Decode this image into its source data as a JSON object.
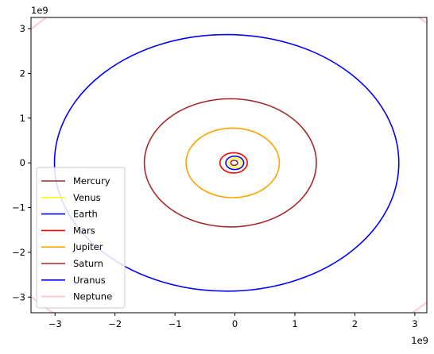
{
  "chart_data": {
    "type": "line",
    "title": "",
    "xlabel": "",
    "ylabel": "",
    "x_offset_label": "1e9",
    "y_offset_label": "1e9",
    "xlim": [
      -3400000000.0,
      3200000000.0
    ],
    "ylim": [
      -3350000000.0,
      3250000000.0
    ],
    "xticks": [
      {
        "value": -3000000000.0,
        "label": "−3"
      },
      {
        "value": -2000000000.0,
        "label": "−2"
      },
      {
        "value": -1000000000.0,
        "label": "−1"
      },
      {
        "value": 0,
        "label": "0"
      },
      {
        "value": 1000000000.0,
        "label": "1"
      },
      {
        "value": 2000000000.0,
        "label": "2"
      },
      {
        "value": 3000000000.0,
        "label": "3"
      }
    ],
    "yticks": [
      {
        "value": -3000000000.0,
        "label": "−3"
      },
      {
        "value": -2000000000.0,
        "label": "−2"
      },
      {
        "value": -1000000000.0,
        "label": "−1"
      },
      {
        "value": 0,
        "label": "0"
      },
      {
        "value": 1000000000.0,
        "label": "1"
      },
      {
        "value": 2000000000.0,
        "label": "2"
      },
      {
        "value": 3000000000.0,
        "label": "3"
      }
    ],
    "grid": false,
    "legend_position": "lower-left",
    "series": [
      {
        "name": "Mercury",
        "color": "#a52a2a",
        "center": [
          -11800000.0,
          0
        ],
        "radii": [
          57900000.0,
          56600000.0
        ]
      },
      {
        "name": "Venus",
        "color": "#ffff00",
        "center": [
          -700000.0,
          0
        ],
        "radii": [
          108200000.0,
          108200000.0
        ]
      },
      {
        "name": "Earth",
        "color": "#0000ff",
        "center": [
          -2500000.0,
          0
        ],
        "radii": [
          149600000.0,
          149600000.0
        ]
      },
      {
        "name": "Mars",
        "color": "#ff0000",
        "center": [
          -21300000.0,
          0
        ],
        "radii": [
          227900000.0,
          226900000.0
        ]
      },
      {
        "name": "Jupiter",
        "color": "#ffa500",
        "center": [
          -37400000.0,
          0
        ],
        "radii": [
          778500000.0,
          777600000.0
        ]
      },
      {
        "name": "Saturn",
        "color": "#a52a2a",
        "center": [
          -76000000.0,
          0
        ],
        "radii": [
          1434000000.0,
          1432000000.0
        ]
      },
      {
        "name": "Uranus",
        "color": "#0000ff",
        "center": [
          -138000000.0,
          0
        ],
        "radii": [
          2871000000.0,
          2868000000.0
        ]
      },
      {
        "name": "Neptune",
        "color": "#ffc0cb",
        "center": [
          -39000000.0,
          0
        ],
        "radii": [
          4495000000.0,
          4495000000.0
        ]
      }
    ]
  }
}
